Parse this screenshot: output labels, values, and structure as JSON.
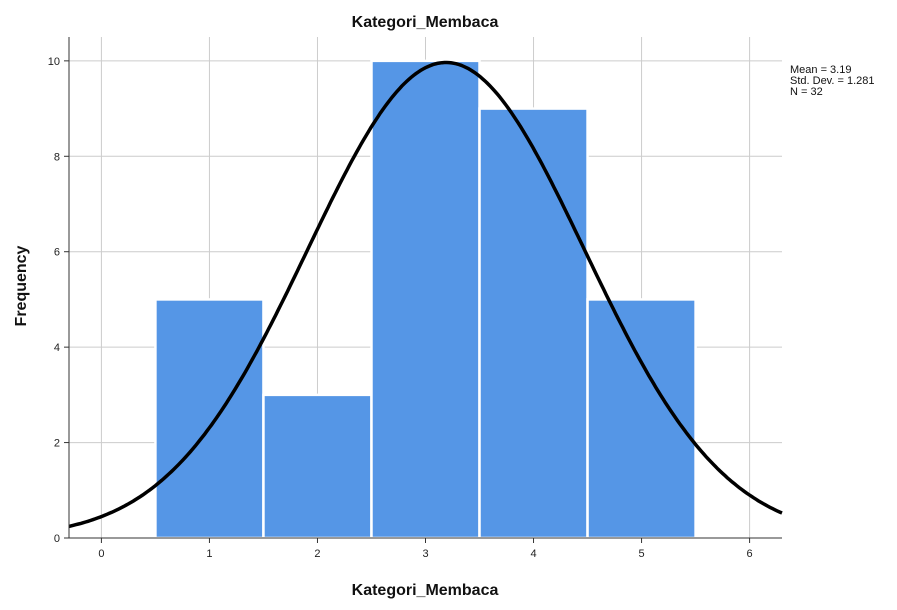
{
  "chart_data": {
    "type": "bar",
    "subtype": "histogram-with-normal-curve",
    "title": "Kategori_Membaca",
    "xlabel": "Kategori_Membaca",
    "ylabel": "Frequency",
    "categories": [
      "1",
      "2",
      "3",
      "4",
      "5"
    ],
    "x_values": [
      1,
      2,
      3,
      4,
      5
    ],
    "values": [
      5,
      3,
      10,
      9,
      5
    ],
    "xlim": [
      -0.3,
      6.3
    ],
    "ylim": [
      0,
      10.5
    ],
    "x_ticks": [
      "0",
      "1",
      "2",
      "3",
      "4",
      "5",
      "6"
    ],
    "y_ticks": [
      "0",
      "2",
      "4",
      "6",
      "8",
      "10"
    ],
    "grid": true,
    "normal_curve": {
      "mean": 3.19,
      "std_dev": 1.281,
      "n": 32,
      "bin_width": 1
    },
    "stats_labels": [
      "Mean = 3.19",
      "Std. Dev. = 1.281",
      "N = 32"
    ],
    "legend_position": "top-right",
    "colors": {
      "bar": "#5596e6",
      "bar_edge": "#ffffff",
      "curve": "#000000",
      "grid": "#cccccc",
      "axis": "#333333"
    }
  }
}
